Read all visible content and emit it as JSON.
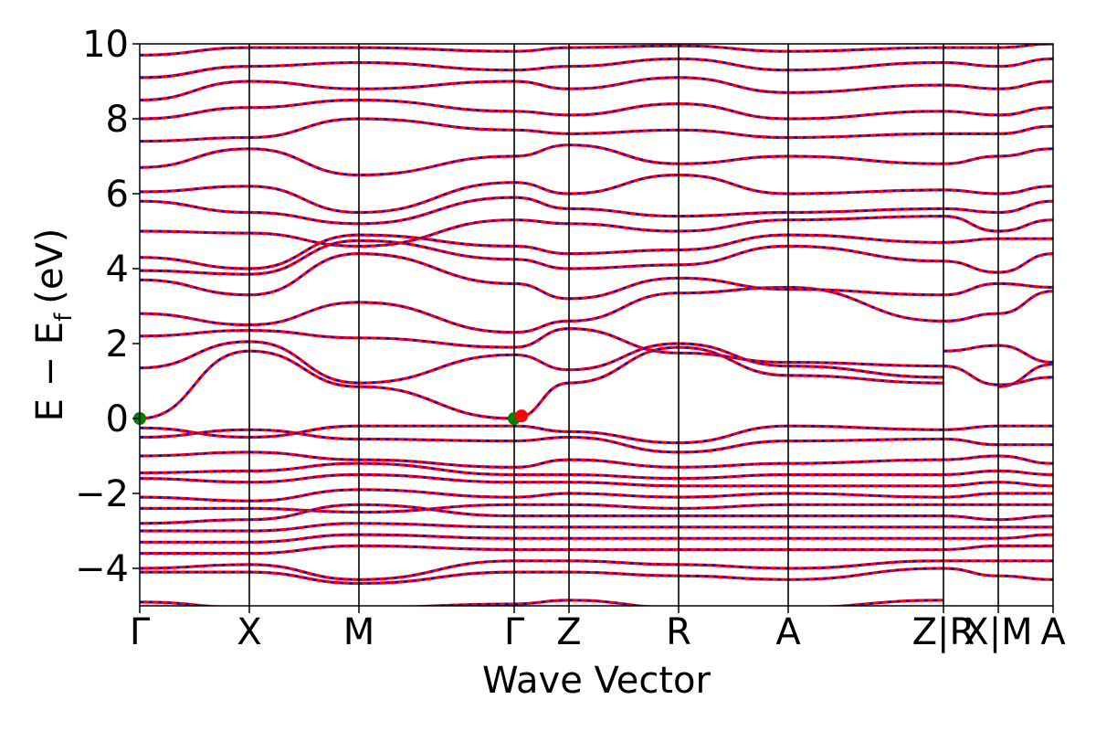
{
  "chart_data": {
    "type": "line",
    "xlabel": "Wave Vector",
    "ylabel_main": "E − E",
    "ylabel_sub": "f",
    "ylabel_unit": "(eV)",
    "ylim": [
      -5,
      10
    ],
    "yticks": [
      {
        "value": -4,
        "label": "−4"
      },
      {
        "value": -2,
        "label": "−2"
      },
      {
        "value": 0,
        "label": "0"
      },
      {
        "value": 2,
        "label": "2"
      },
      {
        "value": 4,
        "label": "4"
      },
      {
        "value": 6,
        "label": "6"
      },
      {
        "value": 8,
        "label": "8"
      },
      {
        "value": 10,
        "label": "10"
      }
    ],
    "kpath": [
      {
        "label": "Γ",
        "pos": 0.0
      },
      {
        "label": "X",
        "pos": 0.12
      },
      {
        "label": "M",
        "pos": 0.24
      },
      {
        "label": "Γ",
        "pos": 0.41
      },
      {
        "label": "Z",
        "pos": 0.47
      },
      {
        "label": "R",
        "pos": 0.59
      },
      {
        "label": "A",
        "pos": 0.71
      },
      {
        "label": "Z|R",
        "pos": 0.88
      },
      {
        "label": "X|M",
        "pos": 0.94
      },
      {
        "label": "A",
        "pos": 1.0
      }
    ],
    "grid": false,
    "series_colors": {
      "spin_up": "#ff0000",
      "spin_down": "#0000ff"
    },
    "marker_colors": {
      "cbm": "#ff0000",
      "vbm": "#008000"
    },
    "cbm_points": [
      {
        "pos": 0.41,
        "energy": 0.02
      }
    ],
    "vbm_points": [
      {
        "pos": 0.0,
        "energy": 0.0
      },
      {
        "pos": 0.41,
        "energy": 0.0
      }
    ],
    "bands": [
      {
        "k": [
          0,
          0.12,
          0.24,
          0.41
        ],
        "e": [
          0.0,
          1.8,
          0.85,
          0.0
        ]
      },
      {
        "k": [
          0.41,
          0.47,
          0.59,
          0.71,
          0.88
        ],
        "e": [
          0.0,
          0.95,
          1.9,
          1.15,
          0.95
        ]
      },
      {
        "k": [
          0.94,
          1.0
        ],
        "e": [
          0.85,
          1.45
        ]
      },
      {
        "k": [
          0,
          0.12,
          0.24,
          0.41,
          0.47,
          0.59,
          0.71,
          0.88
        ],
        "e": [
          1.35,
          2.05,
          0.95,
          1.7,
          1.3,
          2.0,
          1.4,
          1.1
        ]
      },
      {
        "k": [
          0.88,
          0.94,
          1.0
        ],
        "e": [
          1.8,
          1.95,
          1.5
        ]
      },
      {
        "k": [
          0,
          0.12,
          0.24,
          0.41,
          0.47,
          0.59,
          0.71,
          0.88,
          0.94,
          1.0
        ],
        "e": [
          2.2,
          2.35,
          2.15,
          1.9,
          2.4,
          1.75,
          1.5,
          1.4,
          0.9,
          1.1
        ]
      },
      {
        "k": [
          0,
          0.12,
          0.24,
          0.41,
          0.47,
          0.59,
          0.71,
          0.88,
          0.94,
          1.0
        ],
        "e": [
          2.8,
          2.5,
          3.1,
          2.3,
          2.6,
          3.35,
          3.5,
          2.6,
          2.8,
          3.4
        ]
      },
      {
        "k": [
          0,
          0.12,
          0.24,
          0.41,
          0.47,
          0.59,
          0.71,
          0.88,
          0.94,
          1.0
        ],
        "e": [
          3.7,
          3.3,
          4.4,
          3.6,
          3.2,
          3.75,
          3.45,
          3.3,
          3.6,
          3.5
        ]
      },
      {
        "k": [
          0,
          0.12,
          0.24,
          0.41,
          0.47,
          0.59,
          0.71,
          0.88,
          0.94,
          1.0
        ],
        "e": [
          3.95,
          3.85,
          4.75,
          4.25,
          4.0,
          4.1,
          4.6,
          4.2,
          3.9,
          4.4
        ]
      },
      {
        "k": [
          0,
          0.12,
          0.24,
          0.41,
          0.47,
          0.59,
          0.71,
          0.88,
          0.94,
          1.0
        ],
        "e": [
          4.3,
          4.0,
          4.9,
          4.6,
          4.4,
          4.5,
          4.9,
          4.7,
          4.8,
          4.8
        ]
      },
      {
        "k": [
          0,
          0.12,
          0.24,
          0.41,
          0.47,
          0.59,
          0.71,
          0.88,
          0.94,
          1.0
        ],
        "e": [
          5.0,
          4.95,
          4.6,
          5.3,
          5.2,
          5.0,
          5.3,
          5.4,
          5.0,
          5.3
        ]
      },
      {
        "k": [
          0,
          0.12,
          0.24,
          0.41,
          0.47,
          0.59,
          0.71,
          0.88,
          0.94,
          1.0
        ],
        "e": [
          5.8,
          5.5,
          5.2,
          5.9,
          5.6,
          5.4,
          5.5,
          5.6,
          5.5,
          5.8
        ]
      },
      {
        "k": [
          0,
          0.12,
          0.24,
          0.41,
          0.47,
          0.59,
          0.71,
          0.88,
          0.94,
          1.0
        ],
        "e": [
          6.05,
          6.2,
          5.5,
          6.3,
          6.0,
          6.5,
          6.0,
          6.1,
          6.0,
          6.2
        ]
      },
      {
        "k": [
          0,
          0.12,
          0.24,
          0.41,
          0.47,
          0.59,
          0.71,
          0.88,
          0.94,
          1.0
        ],
        "e": [
          6.7,
          7.2,
          6.5,
          7.0,
          7.3,
          6.8,
          7.0,
          6.8,
          7.0,
          7.2
        ]
      },
      {
        "k": [
          0,
          0.12,
          0.24,
          0.41,
          0.47,
          0.59,
          0.71,
          0.88,
          0.94,
          1.0
        ],
        "e": [
          7.4,
          7.5,
          8.0,
          7.7,
          7.6,
          7.7,
          7.5,
          7.6,
          7.6,
          7.8
        ]
      },
      {
        "k": [
          0,
          0.12,
          0.24,
          0.41,
          0.47,
          0.59,
          0.71,
          0.88,
          0.94,
          1.0
        ],
        "e": [
          8.0,
          8.3,
          8.5,
          8.2,
          8.1,
          8.4,
          8.0,
          8.2,
          8.1,
          8.3
        ]
      },
      {
        "k": [
          0,
          0.12,
          0.24,
          0.41,
          0.47,
          0.59,
          0.71,
          0.88,
          0.94,
          1.0
        ],
        "e": [
          8.5,
          9.0,
          8.8,
          9.0,
          8.8,
          9.1,
          8.7,
          8.9,
          8.8,
          9.0
        ]
      },
      {
        "k": [
          0,
          0.12,
          0.24,
          0.41,
          0.47,
          0.59,
          0.71,
          0.88,
          0.94,
          1.0
        ],
        "e": [
          9.1,
          9.4,
          9.5,
          9.3,
          9.4,
          9.6,
          9.3,
          9.5,
          9.4,
          9.6
        ]
      },
      {
        "k": [
          0,
          0.12,
          0.24,
          0.41,
          0.47,
          0.59,
          0.71,
          0.88,
          0.94,
          1.0
        ],
        "e": [
          9.7,
          9.9,
          9.9,
          9.8,
          9.9,
          9.95,
          9.8,
          9.9,
          9.9,
          10.0
        ]
      },
      {
        "k": [
          0,
          0.12,
          0.24,
          0.41,
          0.47,
          0.59,
          0.71,
          0.88,
          0.94,
          1.0
        ],
        "e": [
          -0.25,
          -0.5,
          -0.2,
          -0.2,
          -0.35,
          -0.65,
          -0.2,
          -0.3,
          -0.2,
          -0.2
        ]
      },
      {
        "k": [
          0,
          0.12,
          0.24,
          0.41,
          0.47,
          0.59,
          0.71,
          0.88,
          0.94,
          1.0
        ],
        "e": [
          -0.5,
          -0.3,
          -0.55,
          -0.6,
          -0.5,
          -0.9,
          -0.6,
          -0.55,
          -0.7,
          -0.7
        ]
      },
      {
        "k": [
          0,
          0.12,
          0.24,
          0.41,
          0.47,
          0.59,
          0.71,
          0.88,
          0.94,
          1.0
        ],
        "e": [
          -1.0,
          -0.9,
          -1.1,
          -1.3,
          -1.1,
          -1.3,
          -1.2,
          -1.1,
          -1.0,
          -1.2
        ]
      },
      {
        "k": [
          0,
          0.12,
          0.24,
          0.41,
          0.47,
          0.59,
          0.71,
          0.88,
          0.94,
          1.0
        ],
        "e": [
          -1.45,
          -1.4,
          -1.2,
          -1.5,
          -1.5,
          -1.6,
          -1.5,
          -1.5,
          -1.4,
          -1.5
        ]
      },
      {
        "k": [
          0,
          0.12,
          0.24,
          0.41,
          0.47,
          0.59,
          0.71,
          0.88,
          0.94,
          1.0
        ],
        "e": [
          -1.6,
          -1.7,
          -1.5,
          -1.7,
          -1.7,
          -1.8,
          -1.8,
          -1.8,
          -1.7,
          -1.8
        ]
      },
      {
        "k": [
          0,
          0.12,
          0.24,
          0.41,
          0.47,
          0.59,
          0.71,
          0.88,
          0.94,
          1.0
        ],
        "e": [
          -2.1,
          -2.2,
          -1.9,
          -2.1,
          -2.0,
          -2.1,
          -2.0,
          -2.1,
          -2.0,
          -2.0
        ]
      },
      {
        "k": [
          0,
          0.12,
          0.24,
          0.41,
          0.47,
          0.59,
          0.71,
          0.88,
          0.94,
          1.0
        ],
        "e": [
          -2.4,
          -2.4,
          -2.5,
          -2.3,
          -2.3,
          -2.4,
          -2.3,
          -2.3,
          -2.3,
          -2.3
        ]
      },
      {
        "k": [
          0,
          0.12,
          0.24,
          0.41,
          0.47,
          0.59,
          0.71,
          0.88,
          0.94,
          1.0
        ],
        "e": [
          -2.8,
          -2.7,
          -2.3,
          -2.6,
          -2.6,
          -2.6,
          -2.6,
          -2.6,
          -2.7,
          -2.6
        ]
      },
      {
        "k": [
          0,
          0.12,
          0.24,
          0.41,
          0.47,
          0.59,
          0.71,
          0.88,
          0.94,
          1.0
        ],
        "e": [
          -3.0,
          -3.0,
          -2.8,
          -2.9,
          -2.9,
          -2.9,
          -2.9,
          -2.9,
          -2.9,
          -2.9
        ]
      },
      {
        "k": [
          0,
          0.12,
          0.24,
          0.41,
          0.47,
          0.59,
          0.71,
          0.88,
          0.94,
          1.0
        ],
        "e": [
          -3.3,
          -3.3,
          -3.1,
          -3.2,
          -3.2,
          -3.2,
          -3.2,
          -3.2,
          -3.2,
          -3.1
        ]
      },
      {
        "k": [
          0,
          0.12,
          0.24,
          0.41,
          0.47,
          0.59,
          0.71,
          0.88,
          0.94,
          1.0
        ],
        "e": [
          -3.6,
          -3.6,
          -3.4,
          -3.5,
          -3.5,
          -3.5,
          -3.5,
          -3.5,
          -3.4,
          -3.4
        ]
      },
      {
        "k": [
          0,
          0.12,
          0.24,
          0.41,
          0.47,
          0.59,
          0.71,
          0.88,
          0.94,
          1.0
        ],
        "e": [
          -4.0,
          -3.9,
          -4.3,
          -3.8,
          -3.8,
          -3.9,
          -4.0,
          -3.8,
          -3.8,
          -3.8
        ]
      },
      {
        "k": [
          0,
          0.12,
          0.24,
          0.41,
          0.47,
          0.59,
          0.71,
          0.88,
          0.94,
          1.0
        ],
        "e": [
          -4.1,
          -4.1,
          -4.4,
          -4.1,
          -4.1,
          -4.2,
          -4.3,
          -4.0,
          -4.2,
          -4.3
        ]
      },
      {
        "k": [
          0,
          0.12,
          0.24,
          0.41,
          0.47,
          0.59,
          0.71,
          0.88
        ],
        "e": [
          -4.9,
          -5.05,
          -5.05,
          -4.95,
          -4.85,
          -5.05,
          -5.05,
          -4.85
        ]
      }
    ]
  }
}
